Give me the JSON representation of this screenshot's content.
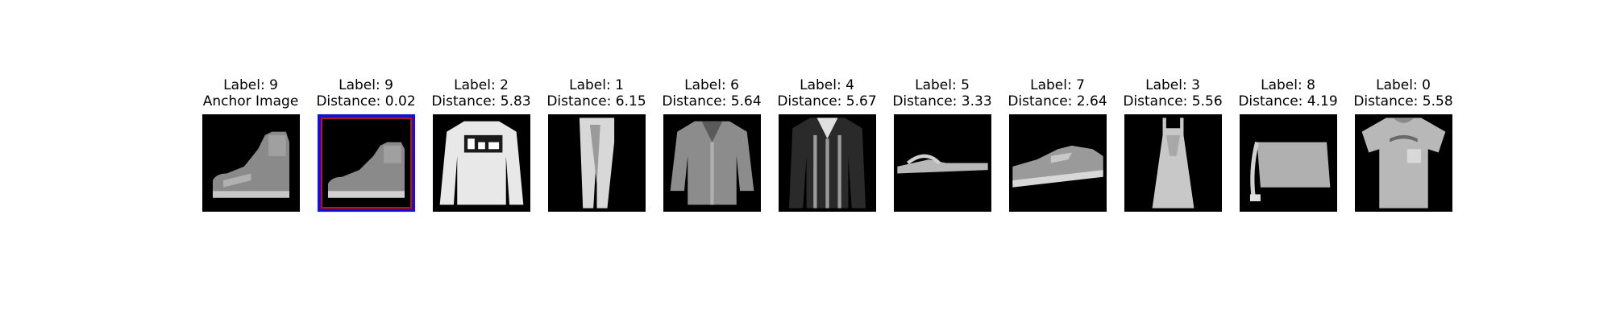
{
  "panels": [
    {
      "label": "Label: 9",
      "subtitle": "Anchor Image",
      "icon": "ankle-boot-image",
      "highlight": false
    },
    {
      "label": "Label: 9",
      "subtitle": "Distance: 0.02",
      "icon": "ankle-boot-image",
      "highlight": true
    },
    {
      "label": "Label: 2",
      "subtitle": "Distance: 5.83",
      "icon": "pullover-image",
      "highlight": false
    },
    {
      "label": "Label: 1",
      "subtitle": "Distance: 6.15",
      "icon": "trouser-image",
      "highlight": false
    },
    {
      "label": "Label: 6",
      "subtitle": "Distance: 5.64",
      "icon": "shirt-image",
      "highlight": false
    },
    {
      "label": "Label: 4",
      "subtitle": "Distance: 5.67",
      "icon": "coat-image",
      "highlight": false
    },
    {
      "label": "Label: 5",
      "subtitle": "Distance: 3.33",
      "icon": "sandal-image",
      "highlight": false
    },
    {
      "label": "Label: 7",
      "subtitle": "Distance: 2.64",
      "icon": "sneaker-image",
      "highlight": false
    },
    {
      "label": "Label: 3",
      "subtitle": "Distance: 5.56",
      "icon": "dress-image",
      "highlight": false
    },
    {
      "label": "Label: 8",
      "subtitle": "Distance: 4.19",
      "icon": "bag-image",
      "highlight": false
    },
    {
      "label": "Label: 0",
      "subtitle": "Distance: 5.58",
      "icon": "tshirt-image",
      "highlight": false
    }
  ],
  "colors": {
    "highlight_outer": "#1010e0",
    "highlight_inner": "#c01010"
  }
}
